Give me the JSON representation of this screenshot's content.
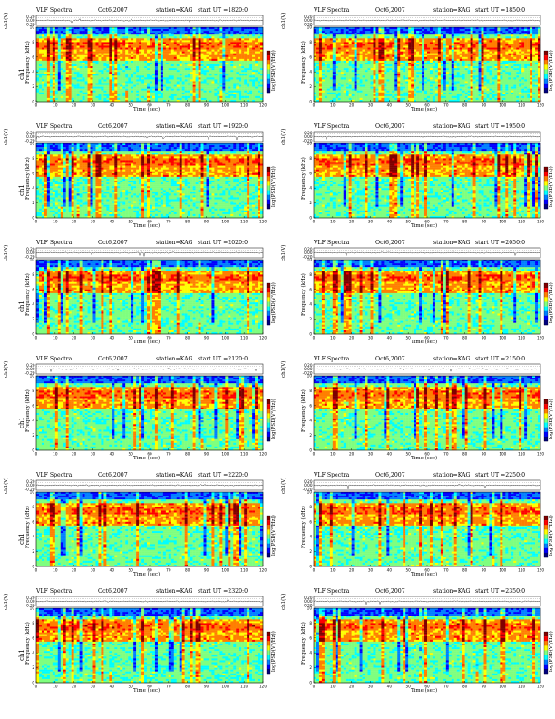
{
  "chart_data": [
    {
      "type": "heatmap",
      "title": "VLF Spectra",
      "date": "Oct6,2007",
      "station": "station=KAG",
      "start": "start  UT  =1820:0"
    },
    {
      "type": "heatmap",
      "title": "VLF Spectra",
      "date": "Oct6,2007",
      "station": "station=KAG",
      "start": "start  UT  =1850:0"
    },
    {
      "type": "heatmap",
      "title": "VLF Spectra",
      "date": "Oct6,2007",
      "station": "station=KAG",
      "start": "start  UT  =1920:0"
    },
    {
      "type": "heatmap",
      "title": "VLF Spectra",
      "date": "Oct6,2007",
      "station": "station=KAG",
      "start": "start  UT  =1950:0"
    },
    {
      "type": "heatmap",
      "title": "VLF Spectra",
      "date": "Oct6,2007",
      "station": "station=KAG",
      "start": "start  UT  =2020:0"
    },
    {
      "type": "heatmap",
      "title": "VLF Spectra",
      "date": "Oct6,2007",
      "station": "station=KAG",
      "start": "start  UT  =2050:0"
    },
    {
      "type": "heatmap",
      "title": "VLF Spectra",
      "date": "Oct6,2007",
      "station": "station=KAG",
      "start": "start  UT  =2120:0"
    },
    {
      "type": "heatmap",
      "title": "VLF Spectra",
      "date": "Oct6,2007",
      "station": "station=KAG",
      "start": "start  UT  =2150:0"
    },
    {
      "type": "heatmap",
      "title": "VLF Spectra",
      "date": "Oct6,2007",
      "station": "station=KAG",
      "start": "start  UT  =2220:0"
    },
    {
      "type": "heatmap",
      "title": "VLF Spectra",
      "date": "Oct6,2007",
      "station": "station=KAG",
      "start": "start  UT  =2250:0"
    },
    {
      "type": "heatmap",
      "title": "VLF Spectra",
      "date": "Oct6,2007",
      "station": "station=KAG",
      "start": "start  UT  =2320:0"
    },
    {
      "type": "heatmap",
      "title": "VLF Spectra",
      "date": "Oct6,2007",
      "station": "station=KAG",
      "start": "start  UT  =2350:0"
    }
  ],
  "axes": {
    "top_ylabel": "ch1(V)",
    "top_yticks": [
      "0.20",
      "0.00",
      "-0.20"
    ],
    "spec_ylabel_prefix": "ch1",
    "spec_ylabel": "Frequency  (kHz)",
    "spec_ylim": [
      0,
      10
    ],
    "spec_yticks": [
      "0",
      "2",
      "4",
      "6",
      "8",
      "10"
    ],
    "xlabel": "Time  (sec)",
    "xlim": [
      0,
      120
    ],
    "xticks": [
      "0",
      "10",
      "20",
      "30",
      "40",
      "50",
      "60",
      "70",
      "80",
      "90",
      "100",
      "110",
      "120"
    ],
    "colorbar_label": "log(PSD(V²/Hz))",
    "colorscale": [
      "#00007f",
      "#0000ff",
      "#007fff",
      "#00ffff",
      "#7fff7f",
      "#ffff00",
      "#ff7f00",
      "#ff0000",
      "#7f0000"
    ]
  }
}
